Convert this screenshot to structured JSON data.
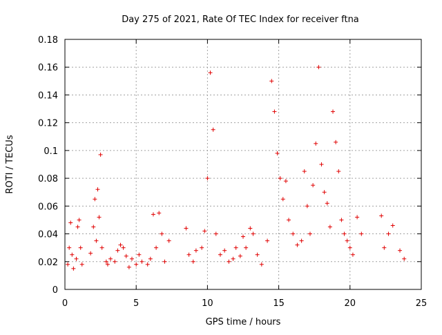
{
  "chart_data": {
    "type": "scatter",
    "title": "Day 275 of 2021, Rate Of TEC Index for receiver ftna",
    "xlabel": "GPS time / hours",
    "ylabel": "ROTI / TECUs",
    "xlim": [
      0,
      25
    ],
    "ylim": [
      0,
      0.18
    ],
    "xticks": [
      "0",
      "5",
      "10",
      "15",
      "20",
      "25"
    ],
    "yticks": [
      "0",
      "0.02",
      "0.04",
      "0.06",
      "0.08",
      "0.1",
      "0.12",
      "0.14",
      "0.16",
      "0.18"
    ],
    "grid": true,
    "marker": "plus",
    "color": "#e00000",
    "series": [
      {
        "x": [
          0.2,
          0.3,
          0.4,
          0.5,
          0.6,
          0.8,
          0.9,
          1.0,
          1.1,
          1.2,
          1.8,
          2.0,
          2.1,
          2.2,
          2.3,
          2.4,
          2.5,
          2.6,
          2.9,
          3.0,
          3.2,
          3.5,
          3.7,
          3.9,
          4.1,
          4.3,
          4.5,
          4.7,
          5.0,
          5.2,
          5.4,
          5.8,
          6.0,
          6.2,
          6.4,
          6.6,
          6.8,
          7.0,
          7.3,
          8.5,
          8.7,
          9.0,
          9.2,
          9.6,
          9.8,
          10.0,
          10.2,
          10.4,
          10.6,
          10.9,
          11.2,
          11.5,
          11.8,
          12.0,
          12.3,
          12.5,
          12.7,
          13.0,
          13.2,
          13.5,
          13.8,
          14.2,
          14.5,
          14.7,
          14.9,
          15.1,
          15.3,
          15.5,
          15.7,
          16.0,
          16.3,
          16.6,
          16.8,
          17.0,
          17.2,
          17.4,
          17.6,
          17.8,
          18.0,
          18.2,
          18.4,
          18.6,
          18.8,
          19.0,
          19.2,
          19.4,
          19.6,
          19.8,
          20.0,
          20.2,
          20.5,
          20.8,
          22.2,
          22.4,
          22.7,
          23.0,
          23.5,
          23.8
        ],
        "y": [
          0.018,
          0.03,
          0.048,
          0.025,
          0.015,
          0.022,
          0.045,
          0.05,
          0.03,
          0.018,
          0.026,
          0.045,
          0.065,
          0.035,
          0.072,
          0.052,
          0.097,
          0.03,
          0.02,
          0.018,
          0.022,
          0.02,
          0.028,
          0.032,
          0.03,
          0.024,
          0.016,
          0.022,
          0.018,
          0.025,
          0.02,
          0.018,
          0.022,
          0.054,
          0.03,
          0.055,
          0.04,
          0.02,
          0.035,
          0.044,
          0.025,
          0.02,
          0.028,
          0.03,
          0.042,
          0.08,
          0.156,
          0.115,
          0.04,
          0.025,
          0.028,
          0.02,
          0.022,
          0.03,
          0.024,
          0.038,
          0.03,
          0.044,
          0.04,
          0.025,
          0.018,
          0.035,
          0.15,
          0.128,
          0.098,
          0.08,
          0.065,
          0.078,
          0.05,
          0.04,
          0.032,
          0.035,
          0.085,
          0.06,
          0.04,
          0.075,
          0.105,
          0.16,
          0.09,
          0.07,
          0.062,
          0.045,
          0.128,
          0.106,
          0.085,
          0.05,
          0.04,
          0.035,
          0.03,
          0.025,
          0.052,
          0.04,
          0.053,
          0.03,
          0.04,
          0.046,
          0.028,
          0.022
        ]
      }
    ]
  }
}
